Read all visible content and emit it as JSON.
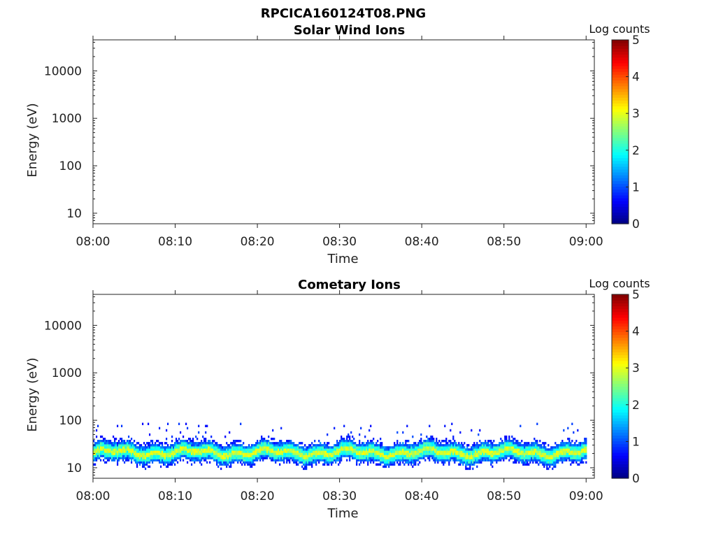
{
  "figure_title": "RPCICA160124T08.PNG",
  "chart_data": [
    {
      "type": "heatmap",
      "title": "Solar Wind Ions",
      "xlabel": "Time",
      "ylabel": "Energy (eV)",
      "x_ticks": [
        "08:00",
        "08:10",
        "08:20",
        "08:30",
        "08:40",
        "08:50",
        "09:00"
      ],
      "xlim": [
        "08:00",
        "09:01"
      ],
      "y_scale": "log",
      "y_ticks": [
        10,
        100,
        1000,
        10000
      ],
      "ylim": [
        6,
        45000
      ],
      "colorbar": {
        "label": "Log counts",
        "ticks": [
          0,
          1,
          2,
          3,
          4,
          5
        ],
        "range": [
          0,
          5
        ],
        "colormap": "jet"
      },
      "band": null
    },
    {
      "type": "heatmap",
      "title": "Cometary Ions",
      "xlabel": "Time",
      "ylabel": "Energy (eV)",
      "x_ticks": [
        "08:00",
        "08:10",
        "08:20",
        "08:30",
        "08:40",
        "08:50",
        "09:00"
      ],
      "xlim": [
        "08:00",
        "09:01"
      ],
      "y_scale": "log",
      "y_ticks": [
        10,
        100,
        1000,
        10000
      ],
      "ylim": [
        6,
        45000
      ],
      "colorbar": {
        "label": "Log counts",
        "ticks": [
          0,
          1,
          2,
          3,
          4,
          5
        ],
        "range": [
          0,
          5
        ],
        "colormap": "jet"
      },
      "band": {
        "energy_range_eV": [
          6,
          85
        ],
        "peak_energy_eV": 20,
        "peak_log_counts": 3.0,
        "time_range": [
          "08:00",
          "09:00"
        ]
      }
    }
  ]
}
